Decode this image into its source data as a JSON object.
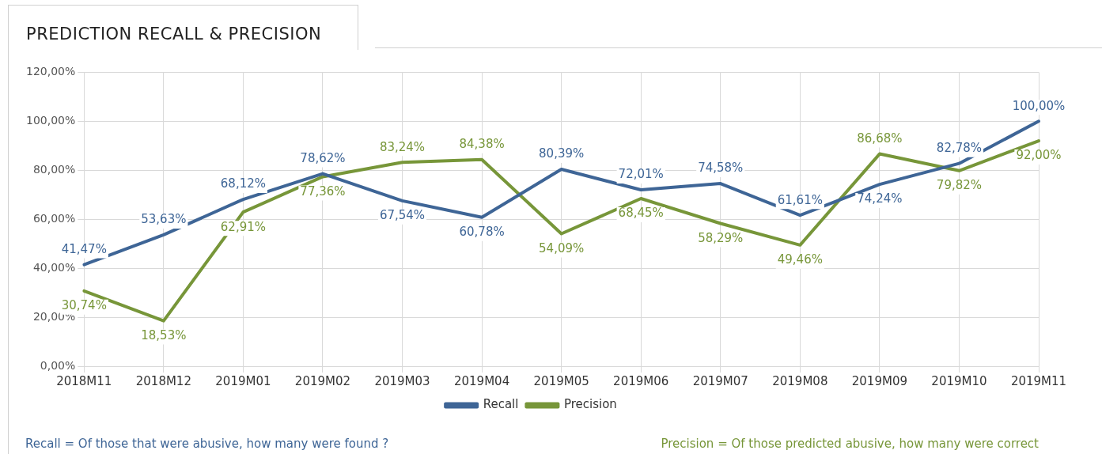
{
  "chart_data": {
    "type": "line",
    "title": "PREDICTION RECALL & PRECISION",
    "categories": [
      "2018M11",
      "2018M12",
      "2019M01",
      "2019M02",
      "2019M03",
      "2019M04",
      "2019M05",
      "2019M06",
      "2019M07",
      "2019M08",
      "2019M09",
      "2019M10",
      "2019M11"
    ],
    "series": [
      {
        "name": "Recall",
        "color": "#3e6596",
        "values": [
          41.47,
          53.63,
          68.12,
          78.62,
          67.54,
          60.78,
          80.39,
          72.01,
          74.58,
          61.61,
          74.24,
          82.78,
          100.0
        ],
        "value_labels": [
          "41,47%",
          "53,63%",
          "68,12%",
          "78,62%",
          "67,54%",
          "60,78%",
          "80,39%",
          "72,01%",
          "74,58%",
          "61,61%",
          "74,24%",
          "82,78%",
          "100,00%"
        ]
      },
      {
        "name": "Precision",
        "color": "#779639",
        "values": [
          30.74,
          18.53,
          62.91,
          77.36,
          83.24,
          84.38,
          54.09,
          68.45,
          58.29,
          49.46,
          86.68,
          79.82,
          92.0
        ],
        "value_labels": [
          "30,74%",
          "18,53%",
          "62,91%",
          "77,36%",
          "83,24%",
          "84,38%",
          "54,09%",
          "68,45%",
          "58,29%",
          "49,46%",
          "86,68%",
          "79,82%",
          "92,00%"
        ]
      }
    ],
    "ylim": [
      0,
      120
    ],
    "yticks": [
      {
        "value": 0,
        "label": "0,00%"
      },
      {
        "value": 20,
        "label": "20,00%"
      },
      {
        "value": 40,
        "label": "40,00%"
      },
      {
        "value": 60,
        "label": "60,00%"
      },
      {
        "value": 80,
        "label": "80,00%"
      },
      {
        "value": 100,
        "label": "100,00%"
      },
      {
        "value": 120,
        "label": "120,00%"
      }
    ],
    "grid": true,
    "legend": "bottom",
    "marker": "none",
    "line_style": "solid",
    "annotations": [
      "Recall = Of those that were abusive, how many were found ?",
      "Precision = Of those predicted abusive, how many were correct"
    ]
  }
}
